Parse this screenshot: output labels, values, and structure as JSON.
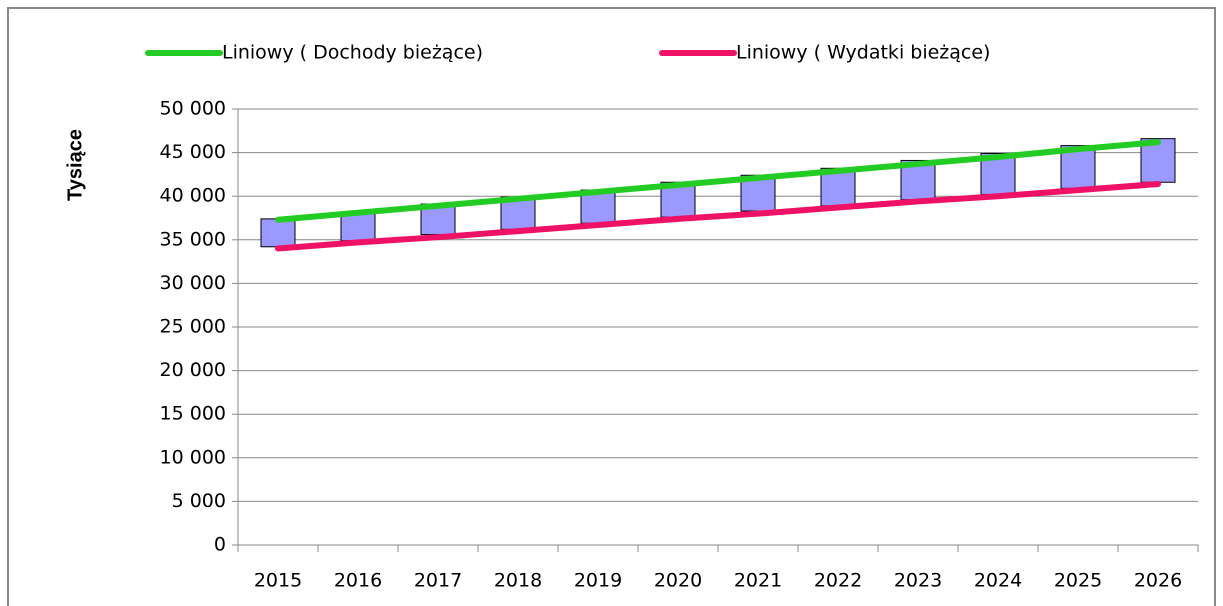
{
  "chart_data": {
    "type": "line",
    "ylabel": "Tysiące",
    "categories": [
      "2015",
      "2016",
      "2017",
      "2018",
      "2019",
      "2020",
      "2021",
      "2022",
      "2023",
      "2024",
      "2025",
      "2026"
    ],
    "series": [
      {
        "name": "Liniowy ( Dochody bieżące)",
        "color": "#22cc22",
        "values": [
          37300,
          38100,
          38900,
          39700,
          40500,
          41300,
          42100,
          42900,
          43700,
          44500,
          45400,
          46200
        ]
      },
      {
        "name": "Liniowy ( Wydatki bieżące)",
        "color": "#ee1166",
        "values": [
          34000,
          34700,
          35300,
          36000,
          36700,
          37400,
          38000,
          38700,
          39400,
          40000,
          40700,
          41400
        ]
      }
    ],
    "up_down_bars": {
      "color": "#9999ff",
      "low": [
        34200,
        34900,
        35600,
        36200,
        36900,
        37600,
        38300,
        38900,
        39600,
        40200,
        40900,
        41600
      ],
      "high": [
        37400,
        38200,
        39100,
        39900,
        40700,
        41600,
        42400,
        43200,
        44100,
        44900,
        45800,
        46600
      ]
    },
    "ylim": [
      0,
      50000
    ],
    "yticks": [
      0,
      {
        "value": 5000,
        "label": "5 000"
      },
      {
        "value": 10000,
        "label": "10 000"
      },
      {
        "value": 15000,
        "label": "15 000"
      },
      {
        "value": 20000,
        "label": "20 000"
      },
      {
        "value": 25000,
        "label": "25 000"
      },
      {
        "value": 30000,
        "label": "30 000"
      },
      {
        "value": 35000,
        "label": "35 000"
      },
      {
        "value": 40000,
        "label": "40 000"
      },
      {
        "value": 45000,
        "label": "45 000"
      },
      {
        "value": 50000,
        "label": "50 000"
      }
    ],
    "grid": true,
    "legend": "top"
  }
}
